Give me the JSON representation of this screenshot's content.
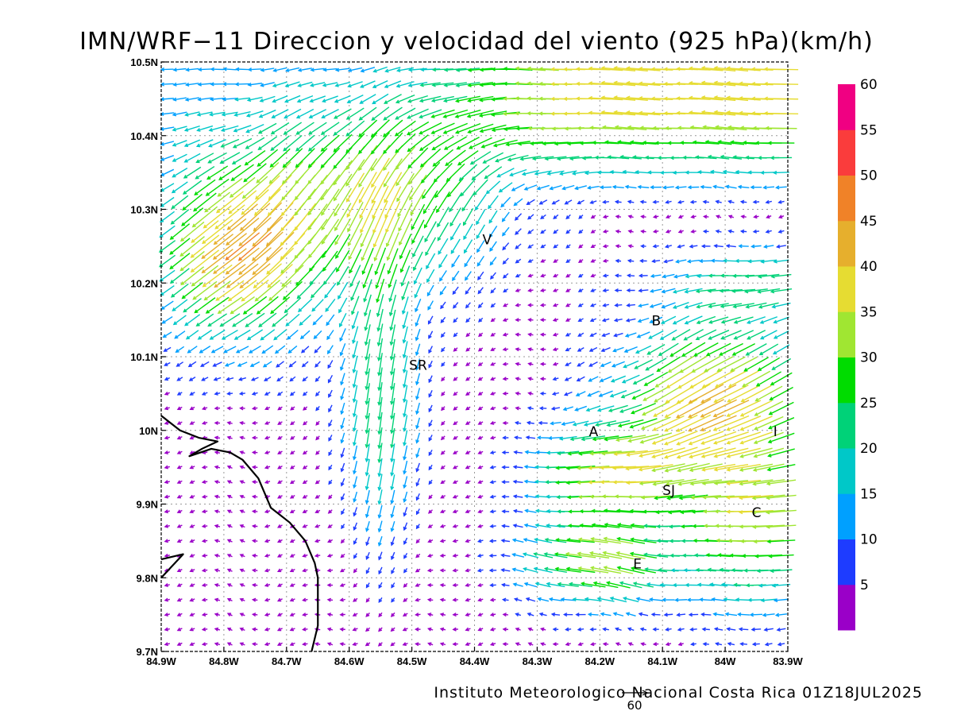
{
  "chart_data": {
    "type": "vector-field",
    "title": "IMN/WRF−11 Direccion y velocidad del viento (925 hPa)(km/h)",
    "footer": "Instituto Meteorologico Nacional Costa Rica  01Z18JUL2025",
    "xlim": [
      -84.9,
      -83.9
    ],
    "ylim": [
      9.7,
      10.5
    ],
    "x_ticks": [
      {
        "v": -84.9,
        "label": "84.9W"
      },
      {
        "v": -84.8,
        "label": "84.8W"
      },
      {
        "v": -84.7,
        "label": "84.7W"
      },
      {
        "v": -84.6,
        "label": "84.6W"
      },
      {
        "v": -84.5,
        "label": "84.5W"
      },
      {
        "v": -84.4,
        "label": "84.4W"
      },
      {
        "v": -84.3,
        "label": "84.3W"
      },
      {
        "v": -84.2,
        "label": "84.2W"
      },
      {
        "v": -84.1,
        "label": "84.1W"
      },
      {
        "v": -84.0,
        "label": "84W"
      },
      {
        "v": -83.9,
        "label": "83.9W"
      }
    ],
    "y_ticks": [
      {
        "v": 9.7,
        "label": "9.7N"
      },
      {
        "v": 9.8,
        "label": "9.8N"
      },
      {
        "v": 9.9,
        "label": "9.9N"
      },
      {
        "v": 10.0,
        "label": "10N"
      },
      {
        "v": 10.1,
        "label": "10.1N"
      },
      {
        "v": 10.2,
        "label": "10.2N"
      },
      {
        "v": 10.3,
        "label": "10.3N"
      },
      {
        "v": 10.4,
        "label": "10.4N"
      },
      {
        "v": 10.5,
        "label": "10.5N"
      }
    ],
    "grid": true,
    "reference_vector": {
      "value": "60"
    },
    "colorbar": {
      "labels": [
        "5",
        "10",
        "15",
        "20",
        "25",
        "30",
        "35",
        "40",
        "45",
        "50",
        "55",
        "60"
      ],
      "colors": [
        "#9a00c8",
        "#1e3cff",
        "#00a0ff",
        "#00c8c8",
        "#00d278",
        "#00dc00",
        "#a0e632",
        "#e6dc32",
        "#e6af2d",
        "#f08228",
        "#fa3c3c",
        "#f00082"
      ]
    },
    "cities": [
      {
        "name": "V",
        "lon": -84.38,
        "lat": 10.26
      },
      {
        "name": "B",
        "lon": -84.11,
        "lat": 10.15
      },
      {
        "name": "SR",
        "lon": -84.49,
        "lat": 10.09
      },
      {
        "name": "A",
        "lon": -84.21,
        "lat": 10.0
      },
      {
        "name": "I",
        "lon": -83.92,
        "lat": 10.0
      },
      {
        "name": "SJ",
        "lon": -84.09,
        "lat": 9.92
      },
      {
        "name": "C",
        "lon": -83.95,
        "lat": 9.89
      },
      {
        "name": "E",
        "lon": -84.14,
        "lat": 9.82
      }
    ],
    "coastline": [
      [
        [
          -84.9,
          10.02
        ],
        [
          -84.87,
          10.0
        ],
        [
          -84.84,
          9.99
        ],
        [
          -84.81,
          9.985
        ],
        [
          -84.835,
          9.975
        ],
        [
          -84.855,
          9.965
        ],
        [
          -84.82,
          9.975
        ],
        [
          -84.79,
          9.97
        ],
        [
          -84.77,
          9.96
        ],
        [
          -84.745,
          9.935
        ],
        [
          -84.725,
          9.895
        ],
        [
          -84.695,
          9.875
        ],
        [
          -84.67,
          9.85
        ],
        [
          -84.655,
          9.82
        ],
        [
          -84.65,
          9.8
        ],
        [
          -84.65,
          9.735
        ],
        [
          -84.66,
          9.7
        ]
      ],
      [
        [
          -84.9,
          9.825
        ],
        [
          -84.865,
          9.832
        ],
        [
          -84.9,
          9.8
        ]
      ]
    ]
  }
}
